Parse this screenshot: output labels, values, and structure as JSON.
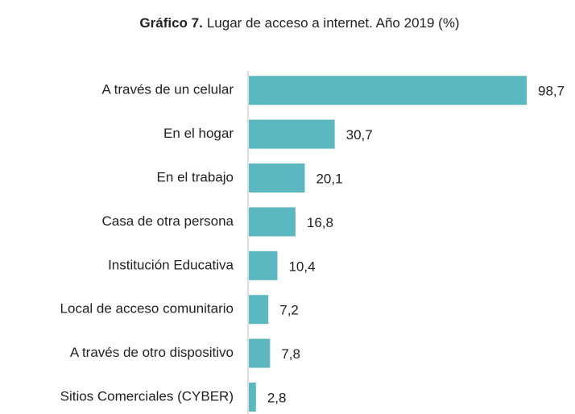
{
  "chart_data": {
    "type": "barh",
    "title_prefix": "Gráfico 7.",
    "title": "Lugar de acceso a internet. Año 2019 (%)",
    "categories": [
      "A través de un celular",
      "En el hogar",
      "En el trabajo",
      "Casa de otra persona",
      "Institución Educativa",
      "Local de acceso comunitario",
      "A través de otro dispositivo",
      "Sitios Comerciales (CYBER)"
    ],
    "values": [
      98.7,
      30.7,
      20.1,
      16.8,
      10.4,
      7.2,
      7.8,
      2.8
    ],
    "value_labels": [
      "98,7",
      "30,7",
      "20,1",
      "16,8",
      "10,4",
      "7,2",
      "7,8",
      "2,8"
    ],
    "color": "#5bb8c1"
  }
}
